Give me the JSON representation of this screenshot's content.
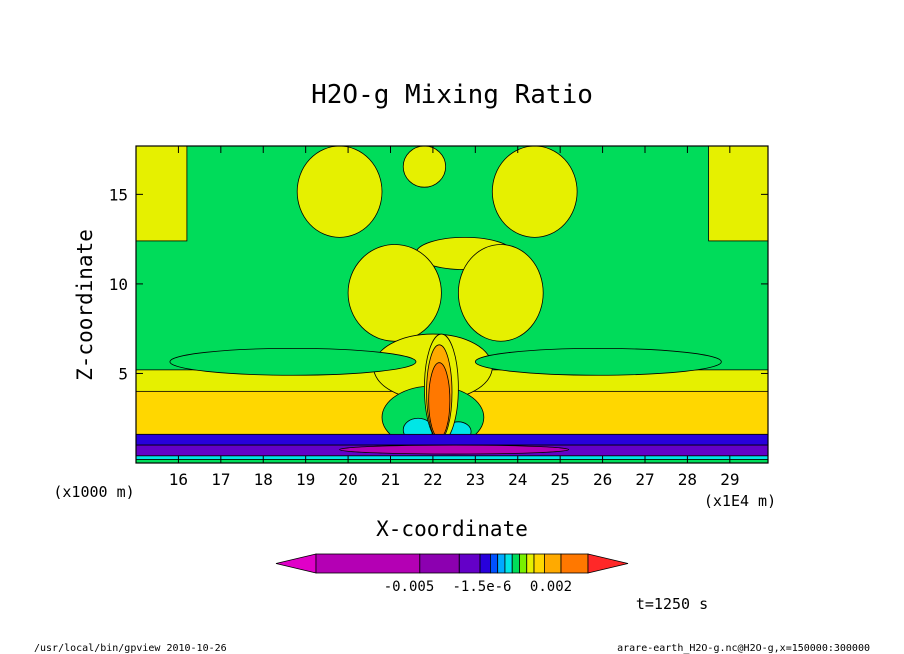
{
  "chart_data": {
    "type": "heatmap",
    "title": "H2O-g Mixing Ratio",
    "xlabel": "X-coordinate",
    "ylabel": "Z-coordinate",
    "x_unit": "(x1E4 m)",
    "y_unit": "(x1000 m)",
    "xlim": [
      15.0,
      29.9
    ],
    "ylim": [
      0.0,
      17.7
    ],
    "x_ticks": [
      16,
      17,
      18,
      19,
      20,
      21,
      22,
      23,
      24,
      25,
      26,
      27,
      28,
      29
    ],
    "y_ticks": [
      5,
      10,
      15
    ],
    "colorbar": {
      "colors": [
        "#e000c8",
        "#b400b4",
        "#8c00b0",
        "#6400c8",
        "#2800dc",
        "#0050ff",
        "#00aaff",
        "#00e6e6",
        "#00dc5a",
        "#78f000",
        "#e6f000",
        "#ffd700",
        "#ffaa00",
        "#ff7800",
        "#ff2828"
      ],
      "tick_labels": [
        "-0.005",
        "-1.5e-6",
        "0.002"
      ]
    },
    "time_label": "t=1250 s",
    "regions": [
      {
        "level": "green",
        "shape": "rect",
        "x": [
          15.0,
          29.9
        ],
        "z": [
          0.0,
          17.7
        ]
      },
      {
        "level": "yellow",
        "shape": "rect",
        "x": [
          15.0,
          29.9
        ],
        "z": [
          2.0,
          5.2
        ]
      },
      {
        "level": "light-orange",
        "shape": "rect",
        "x": [
          15.0,
          29.9
        ],
        "z": [
          1.6,
          4.0
        ]
      },
      {
        "level": "yellow",
        "shape": "rect",
        "x": [
          15.0,
          16.2
        ],
        "z": [
          12.4,
          17.7
        ]
      },
      {
        "level": "yellow",
        "shape": "rect",
        "x": [
          28.5,
          29.9
        ],
        "z": [
          12.4,
          17.7
        ]
      },
      {
        "level": "yellow",
        "shape": "ellipse",
        "x": [
          18.8,
          20.8
        ],
        "z": [
          12.6,
          17.7
        ]
      },
      {
        "level": "yellow",
        "shape": "ellipse",
        "x": [
          23.4,
          25.4
        ],
        "z": [
          12.6,
          17.7
        ]
      },
      {
        "level": "yellow",
        "shape": "ellipse",
        "x": [
          21.3,
          22.3
        ],
        "z": [
          15.4,
          17.7
        ]
      },
      {
        "level": "yellow",
        "shape": "ellipse",
        "x": [
          21.6,
          23.9
        ],
        "z": [
          10.8,
          12.6
        ]
      },
      {
        "level": "yellow",
        "shape": "ellipse",
        "x": [
          20.0,
          22.2
        ],
        "z": [
          6.8,
          12.2
        ]
      },
      {
        "level": "yellow",
        "shape": "ellipse",
        "x": [
          22.6,
          24.6
        ],
        "z": [
          6.8,
          12.2
        ]
      },
      {
        "level": "yellow",
        "shape": "ellipse",
        "x": [
          20.6,
          23.4
        ],
        "z": [
          3.5,
          7.2
        ]
      },
      {
        "level": "green",
        "shape": "ellipse",
        "x": [
          20.8,
          23.2
        ],
        "z": [
          0.8,
          4.3
        ]
      },
      {
        "level": "green",
        "shape": "ellipse",
        "x": [
          15.8,
          21.6
        ],
        "z": [
          4.9,
          6.4
        ]
      },
      {
        "level": "green",
        "shape": "ellipse",
        "x": [
          23.0,
          28.8
        ],
        "z": [
          4.9,
          6.4
        ]
      },
      {
        "level": "cyan",
        "shape": "ellipse",
        "x": [
          21.3,
          22.0
        ],
        "z": [
          1.2,
          2.5
        ]
      },
      {
        "level": "cyan",
        "shape": "ellipse",
        "x": [
          22.3,
          22.9
        ],
        "z": [
          1.2,
          2.3
        ]
      },
      {
        "level": "yellow",
        "shape": "ellipse",
        "x": [
          21.8,
          22.6
        ],
        "z": [
          1.2,
          7.2
        ]
      },
      {
        "level": "orange",
        "shape": "ellipse",
        "x": [
          21.85,
          22.45
        ],
        "z": [
          1.3,
          6.6
        ]
      },
      {
        "level": "dark-orange",
        "shape": "ellipse",
        "x": [
          21.9,
          22.4
        ],
        "z": [
          1.4,
          5.6
        ]
      },
      {
        "level": "dark-violet",
        "shape": "rect",
        "x": [
          15.0,
          29.9
        ],
        "z": [
          1.0,
          1.6
        ]
      },
      {
        "level": "purple",
        "shape": "rect",
        "x": [
          15.0,
          29.9
        ],
        "z": [
          0.4,
          1.0
        ]
      },
      {
        "level": "magenta",
        "shape": "ellipse",
        "x": [
          19.8,
          25.2
        ],
        "z": [
          0.5,
          1.0
        ]
      },
      {
        "level": "cyan",
        "shape": "rect",
        "x": [
          15.0,
          29.9
        ],
        "z": [
          0.2,
          0.4
        ]
      },
      {
        "level": "green",
        "shape": "rect",
        "x": [
          15.0,
          29.9
        ],
        "z": [
          0.0,
          0.2
        ]
      }
    ],
    "region_colors": {
      "green": "#00dc5a",
      "yellow": "#e6f000",
      "light-orange": "#ffd700",
      "orange": "#ffaa00",
      "dark-orange": "#ff7800",
      "cyan": "#00e6e6",
      "dark-violet": "#2800dc",
      "purple": "#6400c8",
      "magenta": "#b400b4"
    }
  },
  "footer": {
    "left": "/usr/local/bin/gpview  2010-10-26",
    "right": "arare-earth_H2O-g.nc@H2O-g,x=150000:300000"
  }
}
